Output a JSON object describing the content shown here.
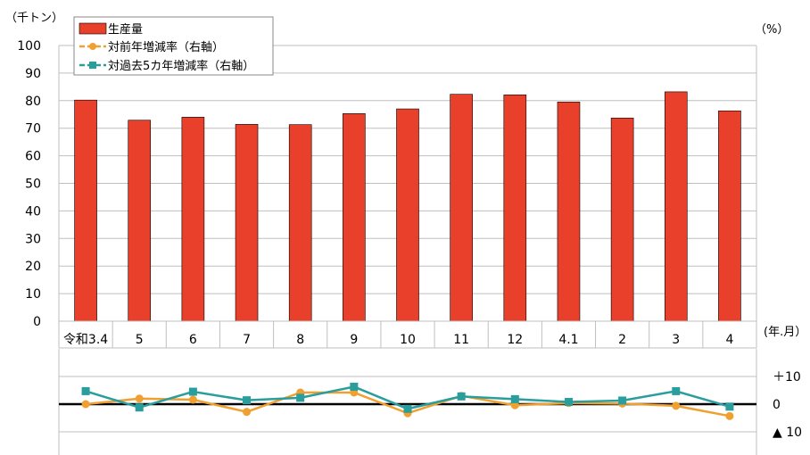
{
  "chart_data": {
    "type": "bar",
    "categories": [
      "令和3.4",
      "5",
      "6",
      "7",
      "8",
      "9",
      "10",
      "11",
      "12",
      "4.1",
      "2",
      "3",
      "4"
    ],
    "y_unit_left": "（千トン）",
    "y_unit_right": "（%）",
    "x_unit": "(年.月）",
    "ylim": [
      0,
      100
    ],
    "yticks": [
      "0",
      "10",
      "20",
      "30",
      "40",
      "50",
      "60",
      "70",
      "80",
      "90",
      "100"
    ],
    "y2ticks": [
      "＋10",
      "0",
      "▲ 10"
    ],
    "y2lim": [
      -10,
      10
    ],
    "grid": true,
    "legend_position": "top-left",
    "series": [
      {
        "name": "生産量",
        "kind": "bar",
        "color": "#e8402a",
        "values": [
          80.2,
          72.9,
          74.0,
          71.4,
          71.3,
          75.3,
          77.0,
          82.3,
          82.1,
          79.5,
          73.7,
          83.2,
          76.3
        ]
      },
      {
        "name": "対前年増減率（右軸）",
        "kind": "line",
        "marker": "circle",
        "color": "#f0a030",
        "values": [
          0.0,
          2.0,
          1.6,
          -2.8,
          4.2,
          4.2,
          -3.3,
          3.0,
          -0.4,
          0.4,
          0.2,
          -0.6,
          -4.3
        ]
      },
      {
        "name": "対過去5カ年増減率（右軸）",
        "kind": "line",
        "marker": "square",
        "color": "#2a9d9d",
        "values": [
          4.7,
          -1.2,
          4.5,
          1.4,
          2.3,
          6.3,
          -1.7,
          2.8,
          1.8,
          0.8,
          1.3,
          4.7,
          -0.9
        ]
      }
    ]
  }
}
